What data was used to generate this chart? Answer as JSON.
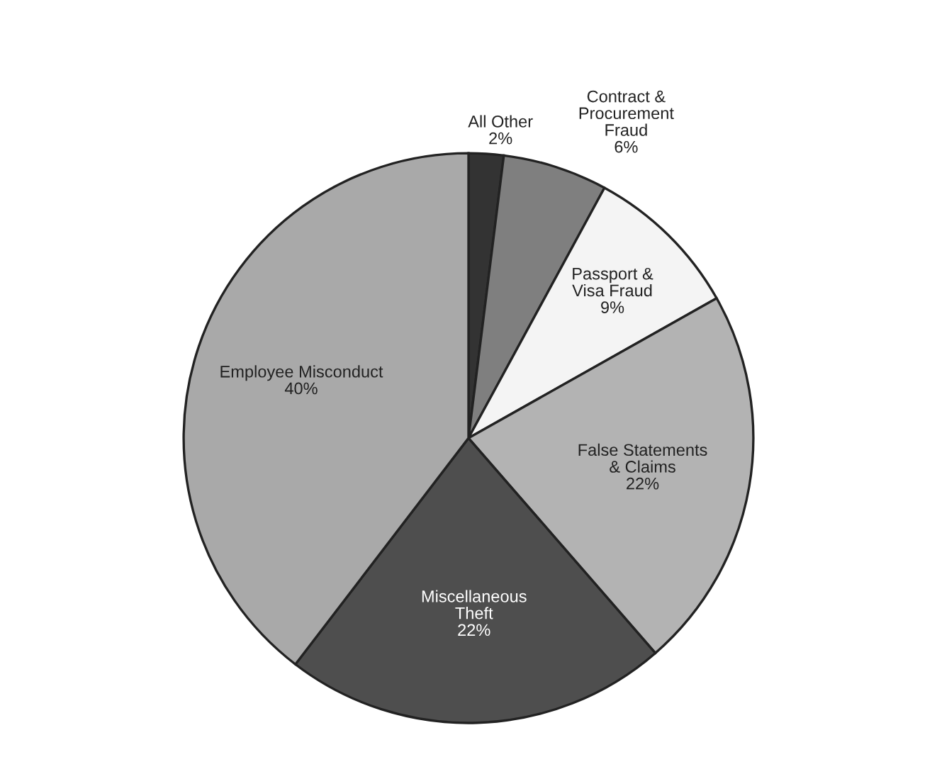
{
  "chart_data": {
    "type": "pie",
    "categories": [
      "All Other",
      "Contract &\nProcurement\nFraud",
      "Passport &\nVisa Fraud",
      "False Statements\n& Claims",
      "Miscellaneous\nTheft",
      "Employee Misconduct"
    ],
    "values": [
      2,
      6,
      9,
      22,
      22,
      40
    ],
    "colors": [
      "#333333",
      "#7f7f7f",
      "#f4f4f4",
      "#b3b3b3",
      "#4e4e4e",
      "#a9a9a9"
    ],
    "value_labels": [
      "2%",
      "6%",
      "9%",
      "22%",
      "22%",
      "40%"
    ]
  }
}
